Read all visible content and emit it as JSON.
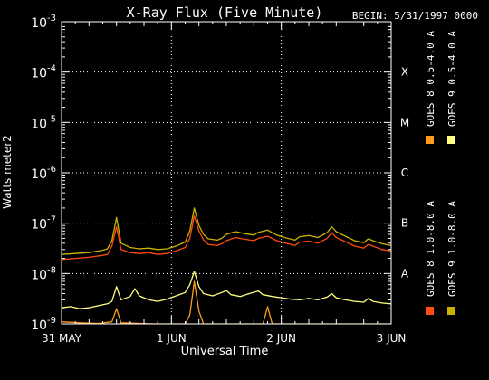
{
  "chart_data": {
    "type": "line",
    "title": "X-Ray Flux (Five Minute)",
    "subtitle": "BEGIN: 5/31/1997 0000",
    "ylabel": "Watts meter2",
    "xlabel": "Universal Time",
    "yscale": "log",
    "ylim": [
      1e-09,
      0.001
    ],
    "y_ticks": [
      {
        "value": 1e-09,
        "mantissa": "10",
        "exp": "-9"
      },
      {
        "value": 1e-08,
        "mantissa": "10",
        "exp": "-8"
      },
      {
        "value": 1e-07,
        "mantissa": "10",
        "exp": "-7"
      },
      {
        "value": 1e-06,
        "mantissa": "10",
        "exp": "-6"
      },
      {
        "value": 1e-05,
        "mantissa": "10",
        "exp": "-5"
      },
      {
        "value": 0.0001,
        "mantissa": "10",
        "exp": "-4"
      },
      {
        "value": 0.001,
        "mantissa": "10",
        "exp": "-3"
      }
    ],
    "x_unit": "hours since 5/31/1997 0000",
    "xlim": [
      0,
      72
    ],
    "x_ticks": [
      {
        "value": 0,
        "label": "31 MAY"
      },
      {
        "value": 24,
        "label": "1 JUN"
      },
      {
        "value": 48,
        "label": "2 JUN"
      },
      {
        "value": 72,
        "label": "3 JUN"
      }
    ],
    "class_labels": [
      {
        "label": "A",
        "value": 1e-08
      },
      {
        "label": "B",
        "value": 1e-07
      },
      {
        "label": "C",
        "value": 1e-06
      },
      {
        "label": "M",
        "value": 1e-05
      },
      {
        "label": "X",
        "value": 0.0001
      }
    ],
    "grid": {
      "horizontal": [
        1e-08,
        1e-07,
        1e-06,
        1e-05,
        0.0001
      ],
      "vertical": [
        24,
        48
      ]
    },
    "legend_position": "right",
    "series": [
      {
        "name": "GOES 8 1.0-8.0 A",
        "color": "#ff4a12",
        "points": [
          [
            0,
            1.9e-08
          ],
          [
            3,
            2e-08
          ],
          [
            6,
            2.1e-08
          ],
          [
            9,
            2.3e-08
          ],
          [
            10,
            2.4e-08
          ],
          [
            11,
            3.5e-08
          ],
          [
            12,
            8.5e-08
          ],
          [
            13,
            3e-08
          ],
          [
            15,
            2.6e-08
          ],
          [
            17,
            2.5e-08
          ],
          [
            19,
            2.6e-08
          ],
          [
            21,
            2.4e-08
          ],
          [
            23,
            2.5e-08
          ],
          [
            25,
            2.8e-08
          ],
          [
            27,
            3.3e-08
          ],
          [
            28,
            5e-08
          ],
          [
            29,
            1.4e-07
          ],
          [
            30,
            7e-08
          ],
          [
            31,
            4.7e-08
          ],
          [
            32,
            3.8e-08
          ],
          [
            34,
            3.6e-08
          ],
          [
            35,
            3.9e-08
          ],
          [
            36,
            4.5e-08
          ],
          [
            38,
            5.2e-08
          ],
          [
            40,
            4.8e-08
          ],
          [
            42,
            4.5e-08
          ],
          [
            43,
            5e-08
          ],
          [
            45,
            5.5e-08
          ],
          [
            47,
            4.5e-08
          ],
          [
            49,
            4e-08
          ],
          [
            51,
            3.6e-08
          ],
          [
            52,
            4.2e-08
          ],
          [
            54,
            4.4e-08
          ],
          [
            56,
            4e-08
          ],
          [
            58,
            5e-08
          ],
          [
            59,
            6.5e-08
          ],
          [
            60,
            5.2e-08
          ],
          [
            62,
            4.3e-08
          ],
          [
            64,
            3.5e-08
          ],
          [
            66,
            3.2e-08
          ],
          [
            67,
            3.8e-08
          ],
          [
            68,
            3.5e-08
          ],
          [
            70,
            3e-08
          ],
          [
            72,
            2.8e-08
          ]
        ]
      },
      {
        "name": "GOES 9 1.0-8.0 A",
        "color": "#c8b400",
        "points": [
          [
            0,
            2.4e-08
          ],
          [
            3,
            2.5e-08
          ],
          [
            6,
            2.6e-08
          ],
          [
            9,
            2.9e-08
          ],
          [
            10,
            3.1e-08
          ],
          [
            11,
            4.5e-08
          ],
          [
            12,
            1.3e-07
          ],
          [
            13,
            4e-08
          ],
          [
            15,
            3.3e-08
          ],
          [
            17,
            3.1e-08
          ],
          [
            19,
            3.2e-08
          ],
          [
            21,
            3e-08
          ],
          [
            23,
            3.1e-08
          ],
          [
            25,
            3.5e-08
          ],
          [
            27,
            4.2e-08
          ],
          [
            28,
            7e-08
          ],
          [
            29,
            2e-07
          ],
          [
            30,
            9e-08
          ],
          [
            31,
            6e-08
          ],
          [
            32,
            4.9e-08
          ],
          [
            34,
            4.6e-08
          ],
          [
            35,
            5e-08
          ],
          [
            36,
            6e-08
          ],
          [
            38,
            6.8e-08
          ],
          [
            40,
            6.2e-08
          ],
          [
            42,
            5.8e-08
          ],
          [
            43,
            6.6e-08
          ],
          [
            45,
            7.3e-08
          ],
          [
            47,
            5.8e-08
          ],
          [
            49,
            5.1e-08
          ],
          [
            51,
            4.6e-08
          ],
          [
            52,
            5.4e-08
          ],
          [
            54,
            5.7e-08
          ],
          [
            56,
            5.2e-08
          ],
          [
            58,
            6.5e-08
          ],
          [
            59,
            8.5e-08
          ],
          [
            60,
            6.8e-08
          ],
          [
            62,
            5.5e-08
          ],
          [
            64,
            4.5e-08
          ],
          [
            66,
            4.1e-08
          ],
          [
            67,
            4.9e-08
          ],
          [
            68,
            4.5e-08
          ],
          [
            70,
            3.9e-08
          ],
          [
            72,
            3.6e-08
          ]
        ]
      },
      {
        "name": "GOES 8 0.5-4.0 A",
        "color": "#ff9a1a",
        "points": [
          [
            0,
            1.1e-09
          ],
          [
            4,
            1.05e-09
          ],
          [
            8,
            1.02e-09
          ],
          [
            11,
            1.1e-09
          ],
          [
            12,
            2e-09
          ],
          [
            13,
            1.05e-09
          ],
          [
            20,
            1e-09
          ],
          [
            27,
            1e-09
          ],
          [
            28,
            1.5e-09
          ],
          [
            29,
            7e-09
          ],
          [
            30,
            1.8e-09
          ],
          [
            31,
            1e-09
          ],
          [
            44,
            1e-09
          ],
          [
            45,
            2.2e-09
          ],
          [
            46,
            1e-09
          ],
          [
            72,
            1e-09
          ]
        ]
      },
      {
        "name": "GOES 9 0.5-4.0 A",
        "color": "#ffff80",
        "points": [
          [
            0,
            2.1e-09
          ],
          [
            2,
            2.2e-09
          ],
          [
            4,
            2e-09
          ],
          [
            6,
            2.1e-09
          ],
          [
            8,
            2.3e-09
          ],
          [
            10,
            2.5e-09
          ],
          [
            11,
            2.8e-09
          ],
          [
            12,
            5.5e-09
          ],
          [
            13,
            3e-09
          ],
          [
            15,
            3.5e-09
          ],
          [
            16,
            5e-09
          ],
          [
            17,
            3.6e-09
          ],
          [
            19,
            3e-09
          ],
          [
            21,
            2.8e-09
          ],
          [
            23,
            3.1e-09
          ],
          [
            25,
            3.6e-09
          ],
          [
            27,
            4.2e-09
          ],
          [
            28,
            6e-09
          ],
          [
            29,
            1.1e-08
          ],
          [
            30,
            5.5e-09
          ],
          [
            31,
            4e-09
          ],
          [
            33,
            3.6e-09
          ],
          [
            35,
            4.2e-09
          ],
          [
            36,
            4.6e-09
          ],
          [
            37,
            3.8e-09
          ],
          [
            39,
            3.5e-09
          ],
          [
            41,
            4e-09
          ],
          [
            43,
            4.5e-09
          ],
          [
            44,
            3.8e-09
          ],
          [
            46,
            3.5e-09
          ],
          [
            48,
            3.3e-09
          ],
          [
            50,
            3.1e-09
          ],
          [
            52,
            3e-09
          ],
          [
            54,
            3.2e-09
          ],
          [
            56,
            3e-09
          ],
          [
            58,
            3.4e-09
          ],
          [
            59,
            4e-09
          ],
          [
            60,
            3.3e-09
          ],
          [
            62,
            3e-09
          ],
          [
            64,
            2.8e-09
          ],
          [
            66,
            2.7e-09
          ],
          [
            67,
            3.2e-09
          ],
          [
            68,
            2.8e-09
          ],
          [
            70,
            2.6e-09
          ],
          [
            72,
            2.5e-09
          ]
        ]
      }
    ]
  }
}
